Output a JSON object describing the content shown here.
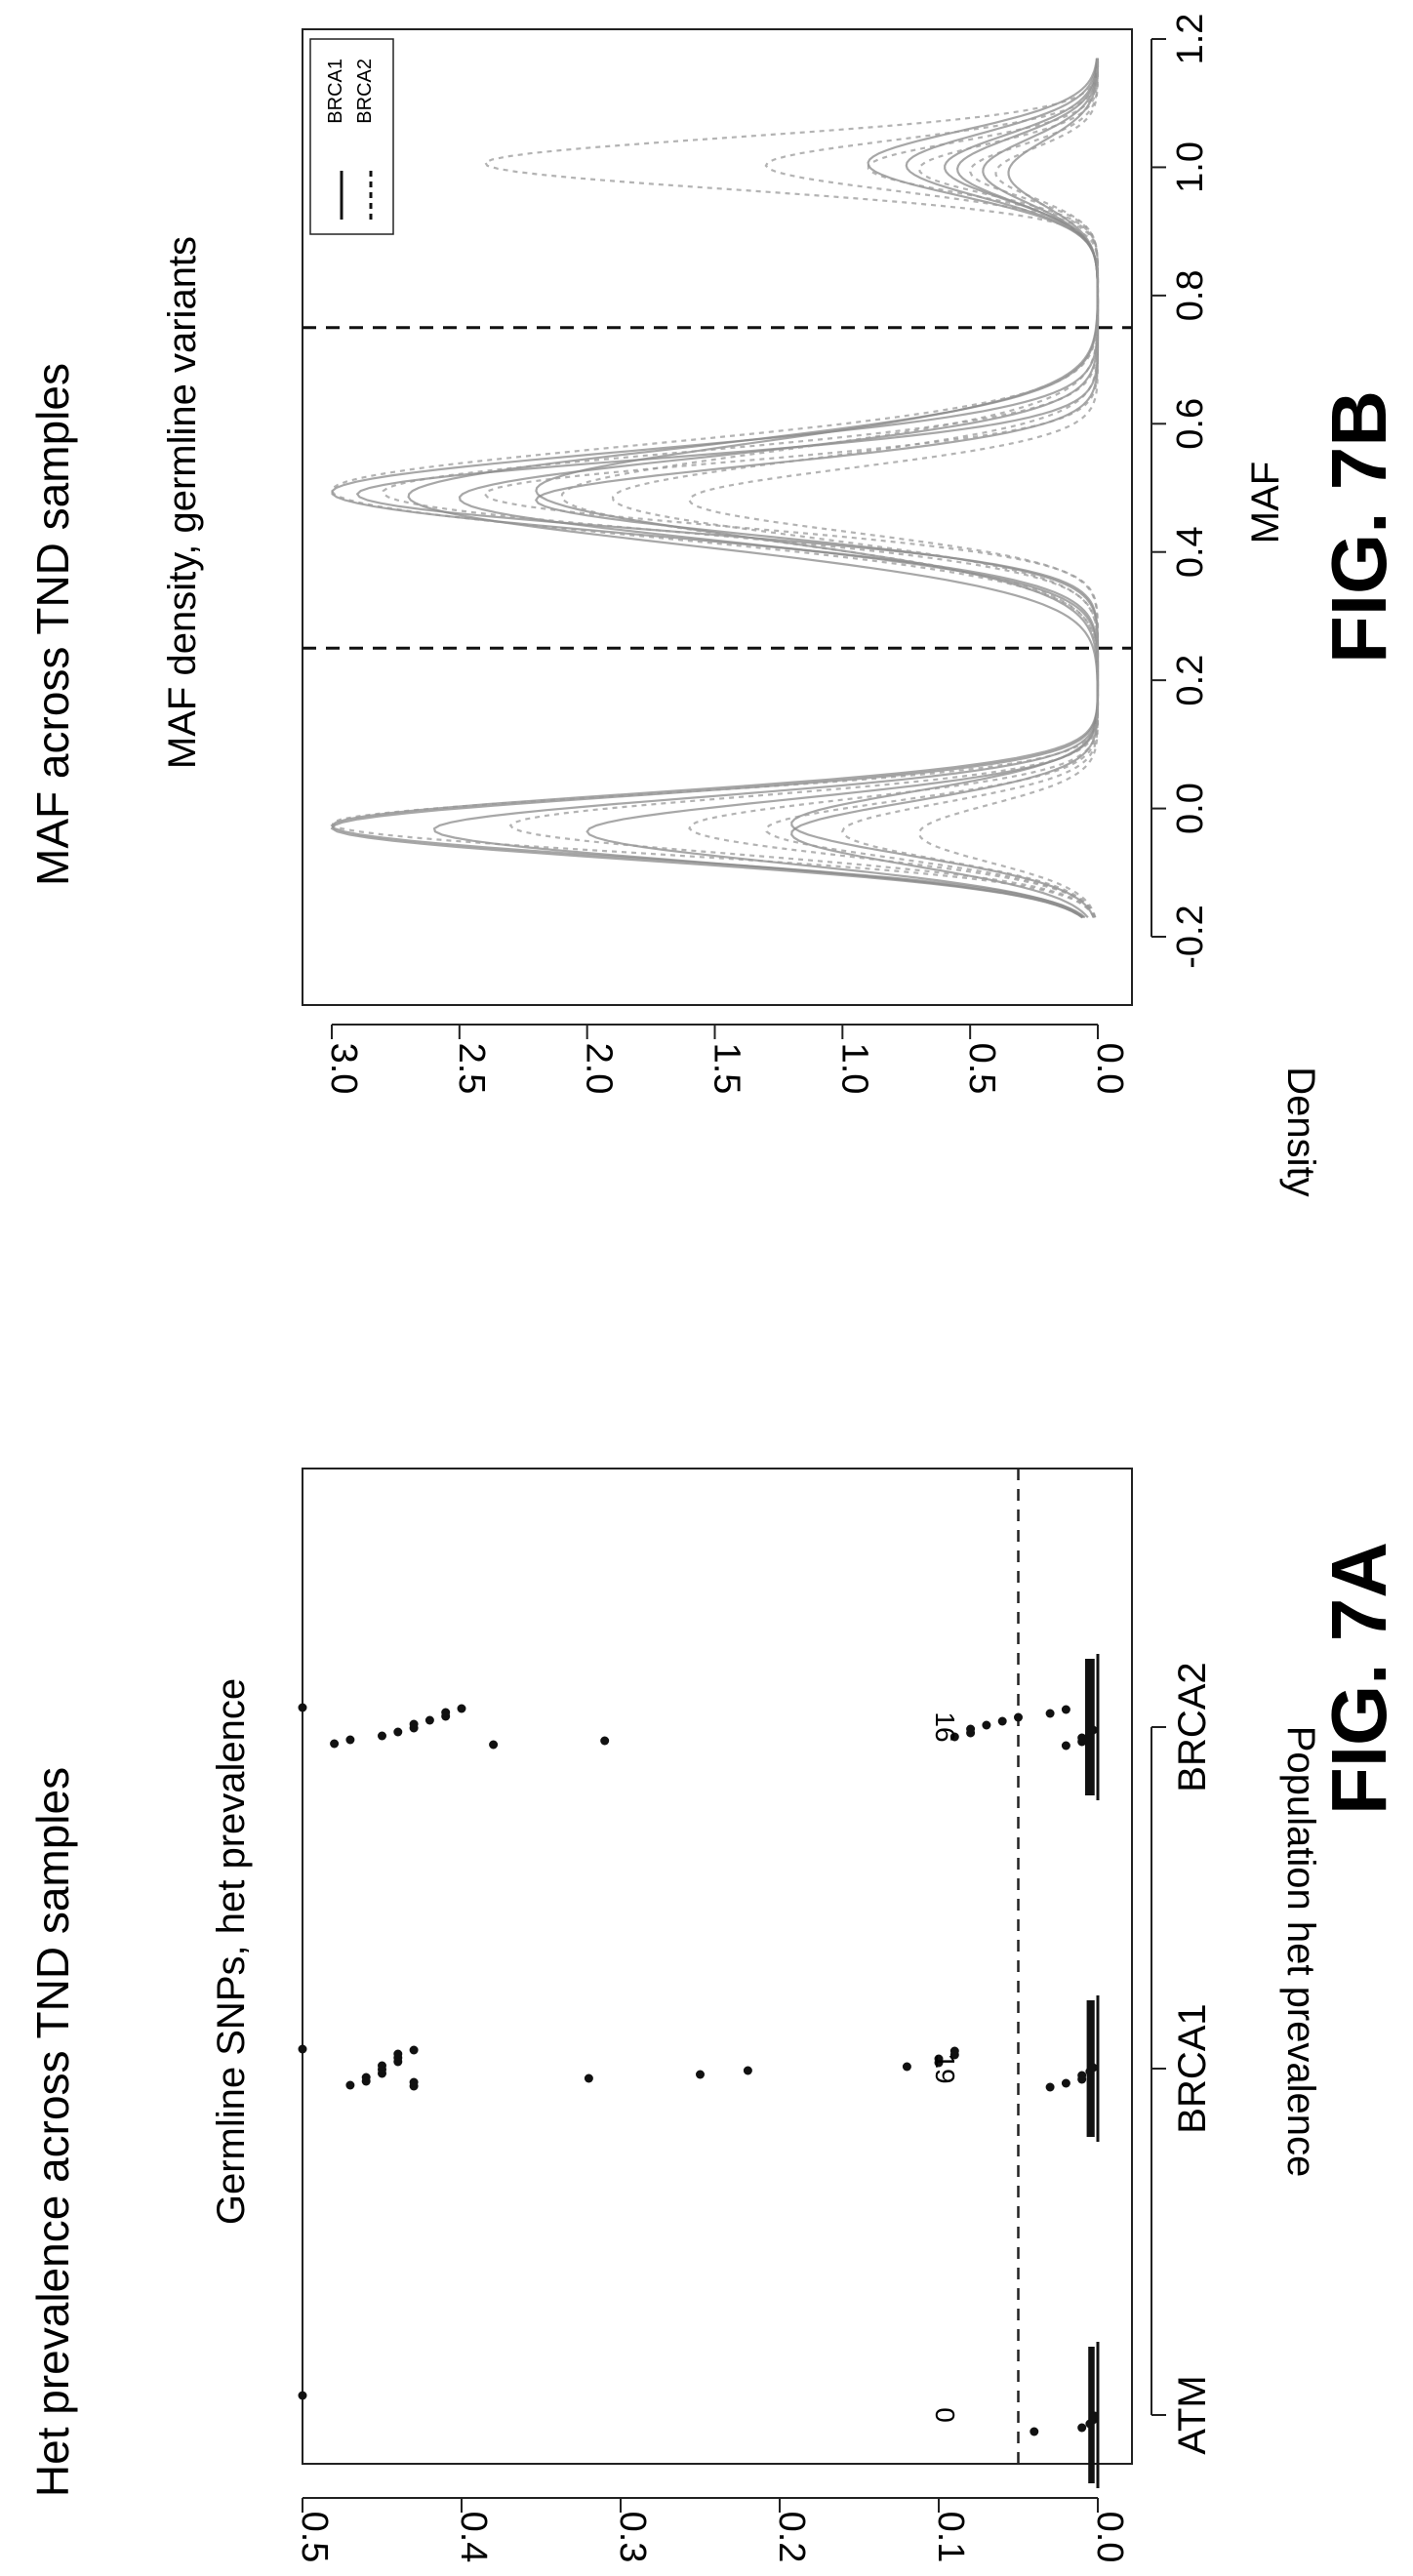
{
  "page": {
    "title_a": "Het prevalence across TND samples",
    "title_b": "MAF across TND samples",
    "fig_a_label": "FIG. 7A",
    "fig_b_label": "FIG. 7B"
  },
  "chart_data": [
    {
      "id": "fig7a",
      "type": "scatter",
      "title": "Germline SNPs, het prevalence",
      "xlabel": "",
      "ylabel": "Population het prevalence",
      "categories": [
        "ATM",
        "BRCA1",
        "BRCA2"
      ],
      "ylim": [
        0.0,
        0.5
      ],
      "yticks": [
        0.0,
        0.1,
        0.2,
        0.3,
        0.4,
        0.5
      ],
      "ytick_labels": [
        "0.0",
        "0.1",
        "0.2",
        "0.3",
        "0.4",
        "0.5"
      ],
      "threshold": 0.05,
      "grid": false,
      "box_ranges": [
        [
          0.002,
          0.006
        ],
        [
          0.002,
          0.007
        ],
        [
          0.002,
          0.008
        ]
      ],
      "count_labels": [
        {
          "category": "ATM",
          "y": 0.1,
          "text": "0"
        },
        {
          "category": "BRCA1",
          "y": 0.1,
          "text": "19"
        },
        {
          "category": "BRCA2",
          "y": 0.1,
          "text": "16"
        }
      ],
      "points": [
        {
          "category": "ATM",
          "values": [
            0.5,
            0.04,
            0.01,
            0.005,
            0.003,
            0.002
          ]
        },
        {
          "category": "BRCA1",
          "values": [
            0.5,
            0.47,
            0.46,
            0.46,
            0.45,
            0.45,
            0.45,
            0.44,
            0.44,
            0.44,
            0.43,
            0.43,
            0.43,
            0.32,
            0.25,
            0.22,
            0.12,
            0.1,
            0.1,
            0.09,
            0.09,
            0.03,
            0.02,
            0.01,
            0.01,
            0.005,
            0.003
          ]
        },
        {
          "category": "BRCA2",
          "values": [
            0.5,
            0.48,
            0.47,
            0.45,
            0.44,
            0.43,
            0.43,
            0.42,
            0.41,
            0.41,
            0.4,
            0.38,
            0.31,
            0.09,
            0.08,
            0.08,
            0.07,
            0.06,
            0.05,
            0.03,
            0.02,
            0.02,
            0.01,
            0.01,
            0.005,
            0.003
          ]
        }
      ]
    },
    {
      "id": "fig7b",
      "type": "line",
      "title": "MAF density, germline variants",
      "xlabel": "MAF",
      "ylabel": "Density",
      "xlim": [
        -0.2,
        1.2
      ],
      "ylim": [
        0.0,
        3.0
      ],
      "xticks": [
        -0.2,
        0.0,
        0.2,
        0.4,
        0.6,
        0.8,
        1.0,
        1.2
      ],
      "xtick_labels": [
        "-0.2",
        "0.0",
        "0.2",
        "0.4",
        "0.6",
        "0.8",
        "1.0",
        "1.2"
      ],
      "yticks": [
        0.0,
        0.5,
        1.0,
        1.5,
        2.0,
        2.5,
        3.0
      ],
      "ytick_labels": [
        "0.0",
        "0.5",
        "1.0",
        "1.5",
        "2.0",
        "2.5",
        "3.0"
      ],
      "vlines": [
        0.25,
        0.75
      ],
      "legend_position": "top-right",
      "grid": false,
      "series": [
        {
          "name": "BRCA1",
          "line_style": "solid",
          "color": "#8a8a8a",
          "peaks": [
            {
              "heights": [
                1.2,
                2.0,
                2.6,
                3.0,
                3.0
              ],
              "spreads": [
                0.05
              ]
            },
            {
              "heights": [
                2.2,
                2.5,
                2.7,
                2.9,
                3.0
              ],
              "spreads": [
                0.055,
                0.065,
                0.075
              ]
            },
            {
              "heights": [
                0.35,
                0.45,
                0.55,
                0.6,
                0.75,
                0.9
              ],
              "spreads": [
                0.05
              ]
            }
          ]
        },
        {
          "name": "BRCA2",
          "line_style": "dashed",
          "color": "#9a9a9a",
          "peaks": [
            {
              "heights": [
                0.7,
                1.0,
                1.3,
                1.6,
                2.3,
                3.0
              ],
              "spreads": [
                0.045
              ]
            },
            {
              "heights": [
                1.6,
                1.9,
                2.1,
                2.4,
                2.8,
                3.0
              ],
              "spreads": [
                0.05,
                0.06,
                0.07
              ]
            },
            {
              "heights": [
                0.4,
                0.5,
                0.7,
                0.9,
                1.3,
                2.4
              ],
              "spreads": [
                0.04
              ]
            }
          ]
        }
      ],
      "peak_centers": [
        -0.03,
        0.49,
        1.0
      ]
    }
  ]
}
